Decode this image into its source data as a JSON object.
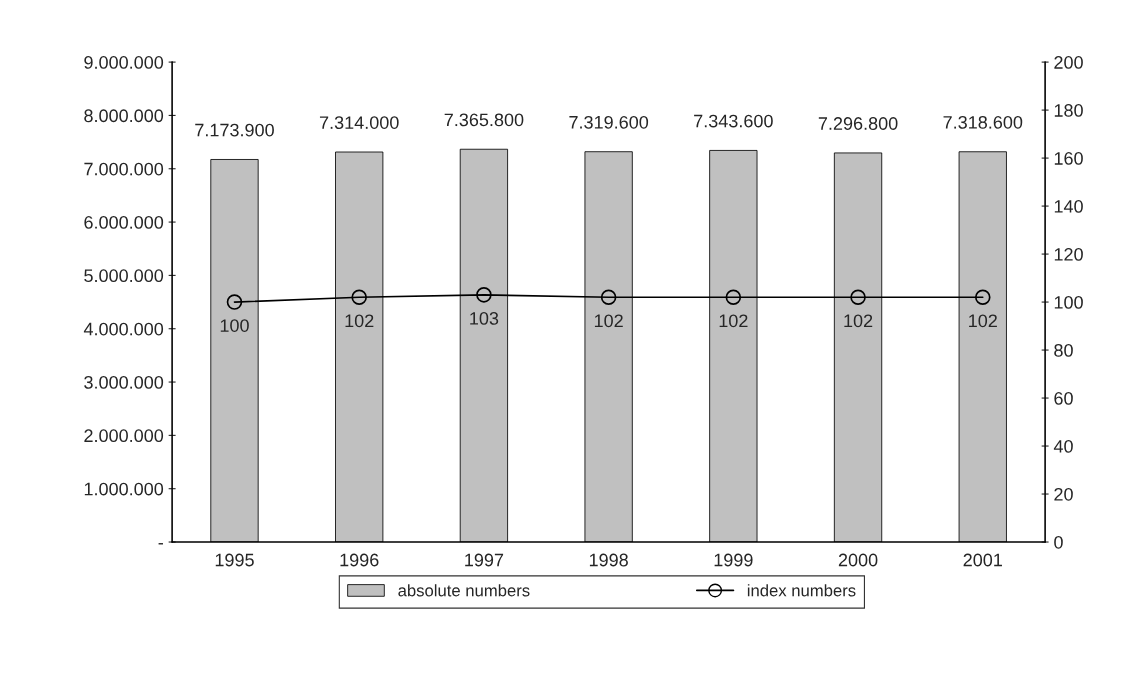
{
  "chart_data": {
    "type": "bar",
    "categories": [
      "1995",
      "1996",
      "1997",
      "1998",
      "1999",
      "2000",
      "2001"
    ],
    "series": [
      {
        "name": "absolute numbers",
        "color": "#c0c0c0",
        "values": [
          7173900,
          7314000,
          7365800,
          7319600,
          7343600,
          7296800,
          7318600
        ],
        "value_labels": [
          "7.173.900",
          "7.314.000",
          "7.365.800",
          "7.319.600",
          "7.343.600",
          "7.296.800",
          "7.318.600"
        ]
      },
      {
        "name": "index numbers",
        "type": "line",
        "axis": "y2",
        "color": "#000000",
        "marker": "circle",
        "values": [
          100,
          102,
          103,
          102,
          102,
          102,
          102
        ],
        "value_labels": [
          "100",
          "102",
          "103",
          "102",
          "102",
          "102",
          "102"
        ]
      }
    ],
    "ylim": [
      0,
      9000000
    ],
    "yticks": [
      {
        "value": 0,
        "label": "-"
      },
      {
        "value": 1000000,
        "label": "1.000.000"
      },
      {
        "value": 2000000,
        "label": "2.000.000"
      },
      {
        "value": 3000000,
        "label": "3.000.000"
      },
      {
        "value": 4000000,
        "label": "4.000.000"
      },
      {
        "value": 5000000,
        "label": "5.000.000"
      },
      {
        "value": 6000000,
        "label": "6.000.000"
      },
      {
        "value": 7000000,
        "label": "7.000.000"
      },
      {
        "value": 8000000,
        "label": "8.000.000"
      },
      {
        "value": 9000000,
        "label": "9.000.000"
      }
    ],
    "y2lim": [
      0,
      200
    ],
    "y2ticks": [
      0,
      20,
      40,
      60,
      80,
      100,
      120,
      140,
      160,
      180,
      200
    ],
    "legend": "bottom",
    "grid": false
  }
}
